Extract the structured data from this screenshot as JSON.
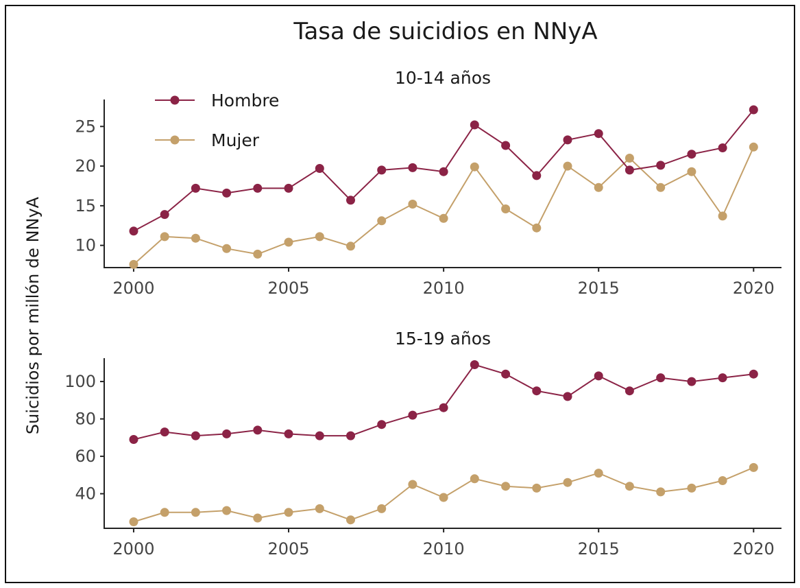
{
  "chart_data": {
    "type": "line",
    "title": "Tasa de suicidios en NNyA",
    "ylabel": "Suicidios por millón de NNyA",
    "legend": {
      "placement": "top-left"
    },
    "colors": {
      "Hombre": "#8b2346",
      "Mujer": "#c4a06a"
    },
    "x": [
      2000,
      2001,
      2002,
      2003,
      2004,
      2005,
      2006,
      2007,
      2008,
      2009,
      2010,
      2011,
      2012,
      2013,
      2014,
      2015,
      2016,
      2017,
      2018,
      2019,
      2020
    ],
    "xticks": [
      2000,
      2005,
      2010,
      2015,
      2020
    ],
    "xlim": [
      1999.05,
      2020.9
    ],
    "panels": [
      {
        "title": "10-14 años",
        "ylim": [
          7.2,
          28.4
        ],
        "yticks": [
          10,
          15,
          20,
          25
        ],
        "series": [
          {
            "name": "Hombre",
            "values": [
              11.8,
              13.9,
              17.2,
              16.6,
              17.2,
              17.2,
              19.7,
              15.7,
              19.5,
              19.8,
              19.3,
              25.2,
              22.6,
              18.8,
              23.3,
              24.1,
              19.5,
              20.1,
              21.5,
              22.3,
              27.1
            ]
          },
          {
            "name": "Mujer",
            "values": [
              7.6,
              11.1,
              10.9,
              9.6,
              8.9,
              10.4,
              11.1,
              9.9,
              13.1,
              15.2,
              13.4,
              19.9,
              14.6,
              12.2,
              20.0,
              17.3,
              21.0,
              17.3,
              19.3,
              13.7,
              22.4
            ]
          }
        ]
      },
      {
        "title": "15-19 años",
        "ylim": [
          21.5,
          112.5
        ],
        "yticks": [
          40,
          60,
          80,
          100
        ],
        "series": [
          {
            "name": "Hombre",
            "values": [
              69,
              73,
              71,
              72,
              74,
              72,
              71,
              71,
              77,
              82,
              86,
              109,
              104,
              95,
              92,
              103,
              95,
              102,
              100,
              102,
              104
            ]
          },
          {
            "name": "Mujer",
            "values": [
              25,
              30,
              30,
              31,
              27,
              30,
              32,
              26,
              32,
              45,
              38,
              48,
              44,
              43,
              46,
              51,
              44,
              41,
              43,
              47,
              54
            ]
          }
        ]
      }
    ]
  }
}
